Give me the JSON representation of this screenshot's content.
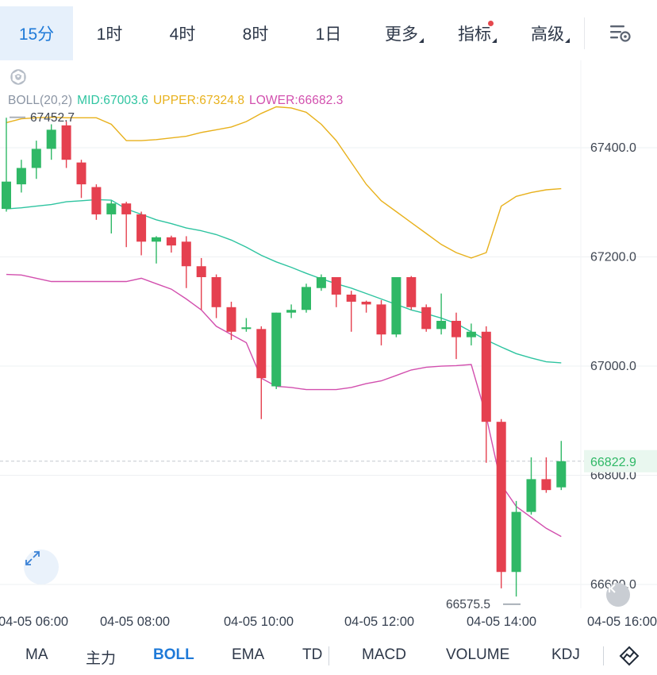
{
  "intervals": [
    {
      "label": "15分",
      "active": true
    },
    {
      "label": "1时"
    },
    {
      "label": "4时"
    },
    {
      "label": "8时"
    },
    {
      "label": "1日"
    },
    {
      "label": "更多",
      "caret": true
    },
    {
      "label": "指标",
      "caret": true,
      "dot": true
    },
    {
      "label": "高级",
      "caret": true
    }
  ],
  "legend": {
    "name": "BOLL(20,2)",
    "mid": "MID:67003.6",
    "upper": "UPPER:67324.8",
    "lower": "LOWER:66682.3",
    "colors": {
      "name": "#8a94a3",
      "mid": "#2ec4a0",
      "upper": "#e8b11c",
      "lower": "#d24fae"
    }
  },
  "price_axis": {
    "ticks": [
      "67400.0",
      "67200.0",
      "67000.0",
      "66800.0",
      "66600.0"
    ],
    "current_price": "66822.9",
    "high_label": "67452.7",
    "low_label": "66575.5"
  },
  "time_axis": {
    "labels": [
      "04-05 06:00",
      "04-05 08:00",
      "04-05 10:00",
      "04-05 12:00",
      "04-05 14:00",
      "04-05 16:00"
    ]
  },
  "indicators": [
    "MA",
    "主力",
    "BOLL",
    "EMA",
    "TD",
    "MACD",
    "VOLUME",
    "KDJ"
  ],
  "active_indicator": "BOLL",
  "chart_data": {
    "type": "candlestick",
    "title": "",
    "interval": "15分",
    "ylim": [
      66565,
      67475
    ],
    "up_color": "#2fb866",
    "down_color": "#e5404f",
    "candles": [
      {
        "o": 67285,
        "h": 67452,
        "l": 67280,
        "c": 67335
      },
      {
        "o": 67330,
        "h": 67375,
        "l": 67315,
        "c": 67360
      },
      {
        "o": 67360,
        "h": 67410,
        "l": 67340,
        "c": 67395
      },
      {
        "o": 67395,
        "h": 67440,
        "l": 67375,
        "c": 67430
      },
      {
        "o": 67438,
        "h": 67445,
        "l": 67360,
        "c": 67375
      },
      {
        "o": 67370,
        "h": 67375,
        "l": 67305,
        "c": 67330
      },
      {
        "o": 67325,
        "h": 67330,
        "l": 67265,
        "c": 67275
      },
      {
        "o": 67275,
        "h": 67300,
        "l": 67240,
        "c": 67295
      },
      {
        "o": 67295,
        "h": 67298,
        "l": 67215,
        "c": 67275
      },
      {
        "o": 67275,
        "h": 67280,
        "l": 67200,
        "c": 67225
      },
      {
        "o": 67225,
        "h": 67235,
        "l": 67185,
        "c": 67233
      },
      {
        "o": 67233,
        "h": 67236,
        "l": 67205,
        "c": 67218
      },
      {
        "o": 67225,
        "h": 67235,
        "l": 67140,
        "c": 67180
      },
      {
        "o": 67180,
        "h": 67195,
        "l": 67100,
        "c": 67160
      },
      {
        "o": 67160,
        "h": 67165,
        "l": 67085,
        "c": 67105
      },
      {
        "o": 67105,
        "h": 67115,
        "l": 67045,
        "c": 67060
      },
      {
        "o": 67065,
        "h": 67085,
        "l": 67060,
        "c": 67068
      },
      {
        "o": 67065,
        "h": 67070,
        "l": 66900,
        "c": 66975
      },
      {
        "o": 66960,
        "h": 67095,
        "l": 66955,
        "c": 67095
      },
      {
        "o": 67095,
        "h": 67110,
        "l": 67085,
        "c": 67100
      },
      {
        "o": 67100,
        "h": 67148,
        "l": 67095,
        "c": 67142
      },
      {
        "o": 67140,
        "h": 67165,
        "l": 67135,
        "c": 67160
      },
      {
        "o": 67160,
        "h": 67160,
        "l": 67105,
        "c": 67128
      },
      {
        "o": 67128,
        "h": 67135,
        "l": 67060,
        "c": 67115
      },
      {
        "o": 67115,
        "h": 67117,
        "l": 67095,
        "c": 67110
      },
      {
        "o": 67110,
        "h": 67118,
        "l": 67035,
        "c": 67055
      },
      {
        "o": 67055,
        "h": 67160,
        "l": 67050,
        "c": 67160
      },
      {
        "o": 67160,
        "h": 67162,
        "l": 67100,
        "c": 67105
      },
      {
        "o": 67105,
        "h": 67110,
        "l": 67060,
        "c": 67065
      },
      {
        "o": 67065,
        "h": 67130,
        "l": 67055,
        "c": 67080
      },
      {
        "o": 67080,
        "h": 67095,
        "l": 67010,
        "c": 67050
      },
      {
        "o": 67050,
        "h": 67075,
        "l": 67035,
        "c": 67060
      },
      {
        "o": 67060,
        "h": 67070,
        "l": 66820,
        "c": 66895
      },
      {
        "o": 66895,
        "h": 66900,
        "l": 66590,
        "c": 66620
      },
      {
        "o": 66620,
        "h": 66750,
        "l": 66575,
        "c": 66730
      },
      {
        "o": 66730,
        "h": 66830,
        "l": 66725,
        "c": 66790
      },
      {
        "o": 66790,
        "h": 66830,
        "l": 66765,
        "c": 66770
      },
      {
        "o": 66775,
        "h": 66860,
        "l": 66770,
        "c": 66822.9
      }
    ],
    "boll_upper": [
      67443,
      67450,
      67452,
      67453,
      67452,
      67452,
      67452,
      67440,
      67410,
      67410,
      67412,
      67415,
      67418,
      67425,
      67430,
      67435,
      67445,
      67460,
      67472,
      67470,
      67462,
      67440,
      67410,
      67370,
      67330,
      67300,
      67280,
      67260,
      67240,
      67220,
      67205,
      67195,
      67205,
      67290,
      67308,
      67315,
      67320,
      67322
    ],
    "boll_mid": [
      67285,
      67287,
      67290,
      67293,
      67298,
      67300,
      67302,
      67301,
      67285,
      67275,
      67265,
      67258,
      67250,
      67245,
      67238,
      67228,
      67215,
      67200,
      67188,
      67178,
      67167,
      67157,
      67148,
      67140,
      67130,
      67120,
      67110,
      67100,
      67093,
      67085,
      67075,
      67060,
      67045,
      67032,
      67020,
      67012,
      67005,
      67003
    ],
    "boll_lower": [
      67165,
      67164,
      67158,
      67152,
      67152,
      67152,
      67152,
      67152,
      67152,
      67158,
      67148,
      67138,
      67120,
      67100,
      67070,
      67055,
      67040,
      66975,
      66960,
      66958,
      66954,
      66954,
      66954,
      66958,
      66965,
      66970,
      66980,
      66990,
      66995,
      66997,
      66998,
      67000,
      66905,
      66780,
      66740,
      66720,
      66700,
      66685
    ]
  }
}
